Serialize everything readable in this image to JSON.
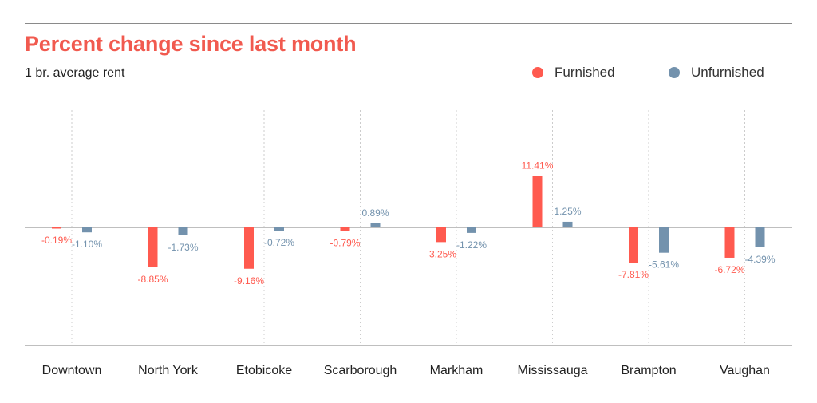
{
  "header": {
    "title": "Percent change since last month",
    "subtitle": "1 br. average rent"
  },
  "legend": [
    {
      "label": "Furnished",
      "color": "#ff5a4f"
    },
    {
      "label": "Unfurnished",
      "color": "#7392ad"
    }
  ],
  "colors": {
    "title": "#f15a4f",
    "furnished": "#ff5a4f",
    "unfurnished": "#7392ad",
    "axis": "#7f7f7f",
    "grid": "#cccccc"
  },
  "chart_data": {
    "type": "bar",
    "title": "Percent change since last month",
    "subtitle": "1 br. average rent",
    "categories": [
      "Downtown",
      "North York",
      "Etobicoke",
      "Scarborough",
      "Markham",
      "Mississauga",
      "Brampton",
      "Vaughan"
    ],
    "series": [
      {
        "name": "Furnished",
        "color": "#ff5a4f",
        "values": [
          -0.19,
          -8.85,
          -9.16,
          -0.79,
          -3.25,
          11.41,
          -7.81,
          -6.72
        ],
        "labels": [
          "-0.19%",
          "-8.85%",
          "-9.16%",
          "-0.79%",
          "-3.25%",
          "11.41%",
          "-7.81%",
          "-6.72%"
        ]
      },
      {
        "name": "Unfurnished",
        "color": "#7392ad",
        "values": [
          -1.1,
          -1.73,
          -0.72,
          0.89,
          -1.22,
          1.25,
          -5.61,
          -4.39
        ],
        "labels": [
          "-1.10%",
          "-1.73%",
          "-0.72%",
          "0.89%",
          "-1.22%",
          "1.25%",
          "-5.61%",
          "-4.39%"
        ]
      }
    ],
    "ylim": [
      -20.5,
      20.5
    ],
    "grid": "vertical dotted lines at each category",
    "legend_position": "top-right"
  }
}
